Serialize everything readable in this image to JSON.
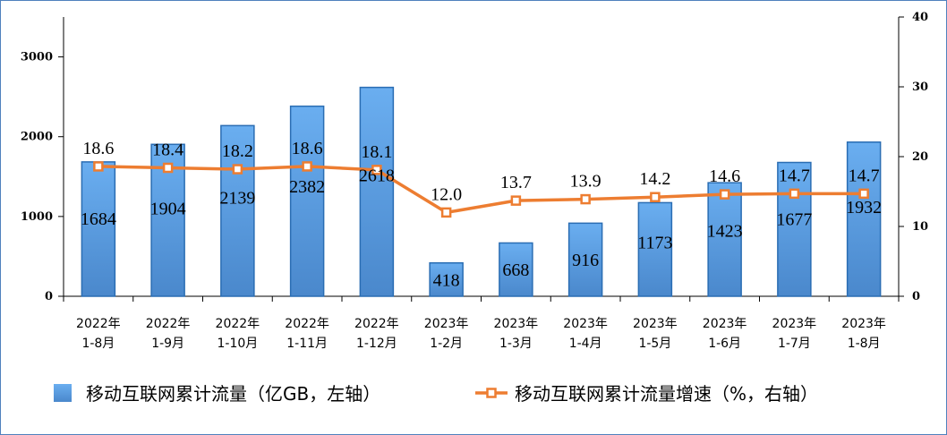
{
  "chart_data": {
    "type": "bar",
    "categories": [
      [
        "2022年",
        "1-8月"
      ],
      [
        "2022年",
        "1-9月"
      ],
      [
        "2022年",
        "1-10月"
      ],
      [
        "2022年",
        "1-11月"
      ],
      [
        "2022年",
        "1-12月"
      ],
      [
        "2023年",
        "1-2月"
      ],
      [
        "2023年",
        "1-3月"
      ],
      [
        "2023年",
        "1-4月"
      ],
      [
        "2023年",
        "1-5月"
      ],
      [
        "2023年",
        "1-6月"
      ],
      [
        "2023年",
        "1-7月"
      ],
      [
        "2023年",
        "1-8月"
      ]
    ],
    "series": [
      {
        "name": "移动互联网累计流量（亿GB，左轴）",
        "type": "bar",
        "axis": "left",
        "values": [
          1684,
          1904,
          2139,
          2382,
          2618,
          418,
          668,
          916,
          1173,
          1423,
          1677,
          1932
        ],
        "labels": [
          "1684",
          "1904",
          "2139",
          "2382",
          "2618",
          "418",
          "668",
          "916",
          "1173",
          "1423",
          "1677",
          "1932"
        ]
      },
      {
        "name": "移动互联网累计流量增速（%，右轴）",
        "type": "line",
        "axis": "right",
        "values": [
          18.6,
          18.4,
          18.2,
          18.6,
          18.1,
          12.0,
          13.7,
          13.9,
          14.2,
          14.6,
          14.7,
          14.7
        ],
        "labels": [
          "18.6",
          "18.4",
          "18.2",
          "18.6",
          "18.1",
          "12.0",
          "13.7",
          "13.9",
          "14.2",
          "14.6",
          "14.7",
          "14.7"
        ]
      }
    ],
    "left_axis": {
      "ylim": [
        0,
        3500
      ],
      "ticks": [
        0,
        1000,
        2000,
        3000
      ],
      "tick_labels": [
        "0",
        "1000",
        "2000",
        "3000"
      ]
    },
    "right_axis": {
      "ylim": [
        0,
        40
      ],
      "ticks": [
        0,
        10,
        20,
        30,
        40
      ],
      "tick_labels": [
        "0",
        "10",
        "20",
        "30",
        "40"
      ]
    },
    "grid": false,
    "legend_position": "bottom",
    "colors": {
      "bar_fill_top": "#6aaef0",
      "bar_fill_bottom": "#4a88cc",
      "bar_stroke": "#2a6db3",
      "line": "#ed7d31",
      "marker_fill": "#ffffff",
      "frame": "#4f81bd"
    }
  }
}
